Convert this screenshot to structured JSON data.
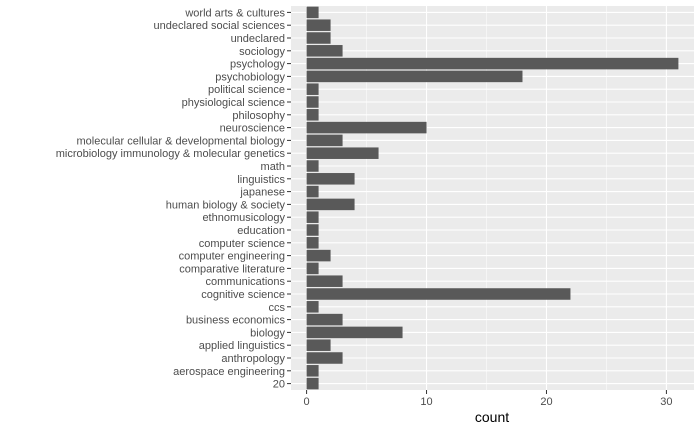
{
  "chart_data": {
    "type": "bar",
    "orientation": "horizontal",
    "xlabel": "count",
    "ylabel": "",
    "xlim": [
      -1.3,
      32.3
    ],
    "x_ticks": [
      0,
      10,
      20,
      30
    ],
    "grid": true,
    "categories": [
      "20",
      "aerospace engineering",
      "anthropology",
      "applied linguistics",
      "biology",
      "business economics",
      "ccs",
      "cognitive science",
      "communications",
      "comparative literature",
      "computer engineering",
      "computer science",
      "education",
      "ethnomusicology",
      "human biology & society",
      "japanese",
      "linguistics",
      "math",
      "microbiology immunology & molecular genetics",
      "molecular cellular & developmental biology",
      "neuroscience",
      "philosophy",
      "physiological science",
      "political science",
      "psychobiology",
      "psychology",
      "sociology",
      "undeclared",
      "undeclared social sciences",
      "world arts & cultures"
    ],
    "values": [
      1,
      1,
      3,
      2,
      8,
      3,
      1,
      22,
      3,
      1,
      2,
      1,
      1,
      1,
      4,
      1,
      4,
      1,
      6,
      3,
      10,
      1,
      1,
      1,
      18,
      31,
      3,
      2,
      2,
      1
    ],
    "colors": {
      "panel": "#ebebeb",
      "grid_major": "#ffffff",
      "bar": "#595959",
      "text": "#4d4d4d",
      "title": "#000000"
    }
  }
}
